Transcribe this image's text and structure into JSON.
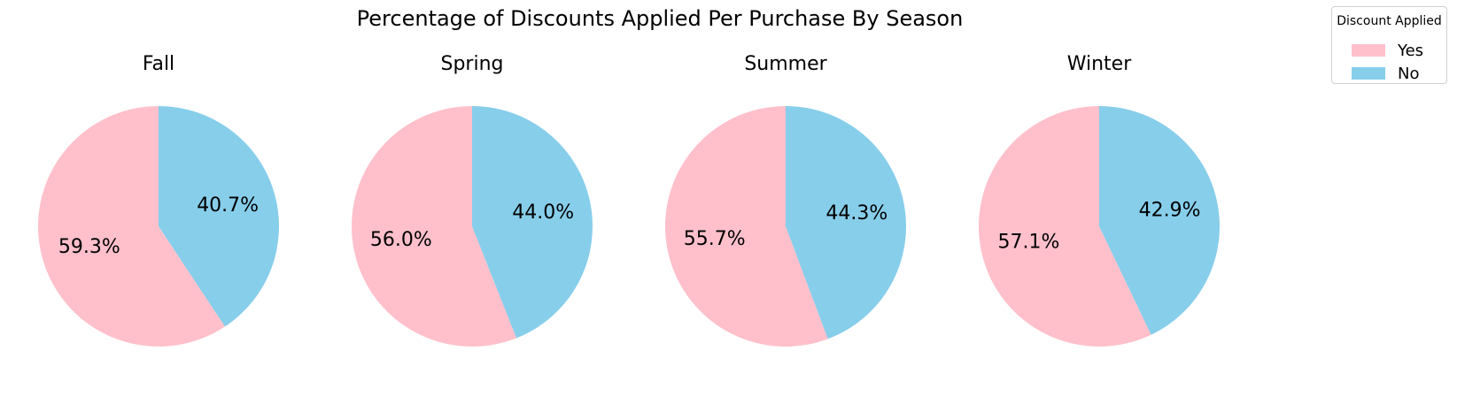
{
  "chart_data": {
    "type": "pie",
    "title": "Percentage of Discounts Applied Per Purchase By Season",
    "labels": [
      "Yes",
      "No"
    ],
    "colors": {
      "Yes": "#ffc0cb",
      "No": "#87ceeb"
    },
    "start_angle_deg": 90,
    "direction": "counterclockwise",
    "pies": [
      {
        "title": "Fall",
        "values": [
          59.3,
          40.7
        ],
        "value_labels": [
          "59.3%",
          "40.7%"
        ]
      },
      {
        "title": "Spring",
        "values": [
          56.0,
          44.0
        ],
        "value_labels": [
          "56.0%",
          "44.0%"
        ]
      },
      {
        "title": "Summer",
        "values": [
          55.7,
          44.3
        ],
        "value_labels": [
          "55.7%",
          "44.3%"
        ]
      },
      {
        "title": "Winter",
        "values": [
          57.1,
          42.9
        ],
        "value_labels": [
          "57.1%",
          "42.9%"
        ]
      }
    ],
    "legend": {
      "title": "Discount Applied",
      "placement": "top-right",
      "entries": [
        "Yes",
        "No"
      ]
    }
  }
}
